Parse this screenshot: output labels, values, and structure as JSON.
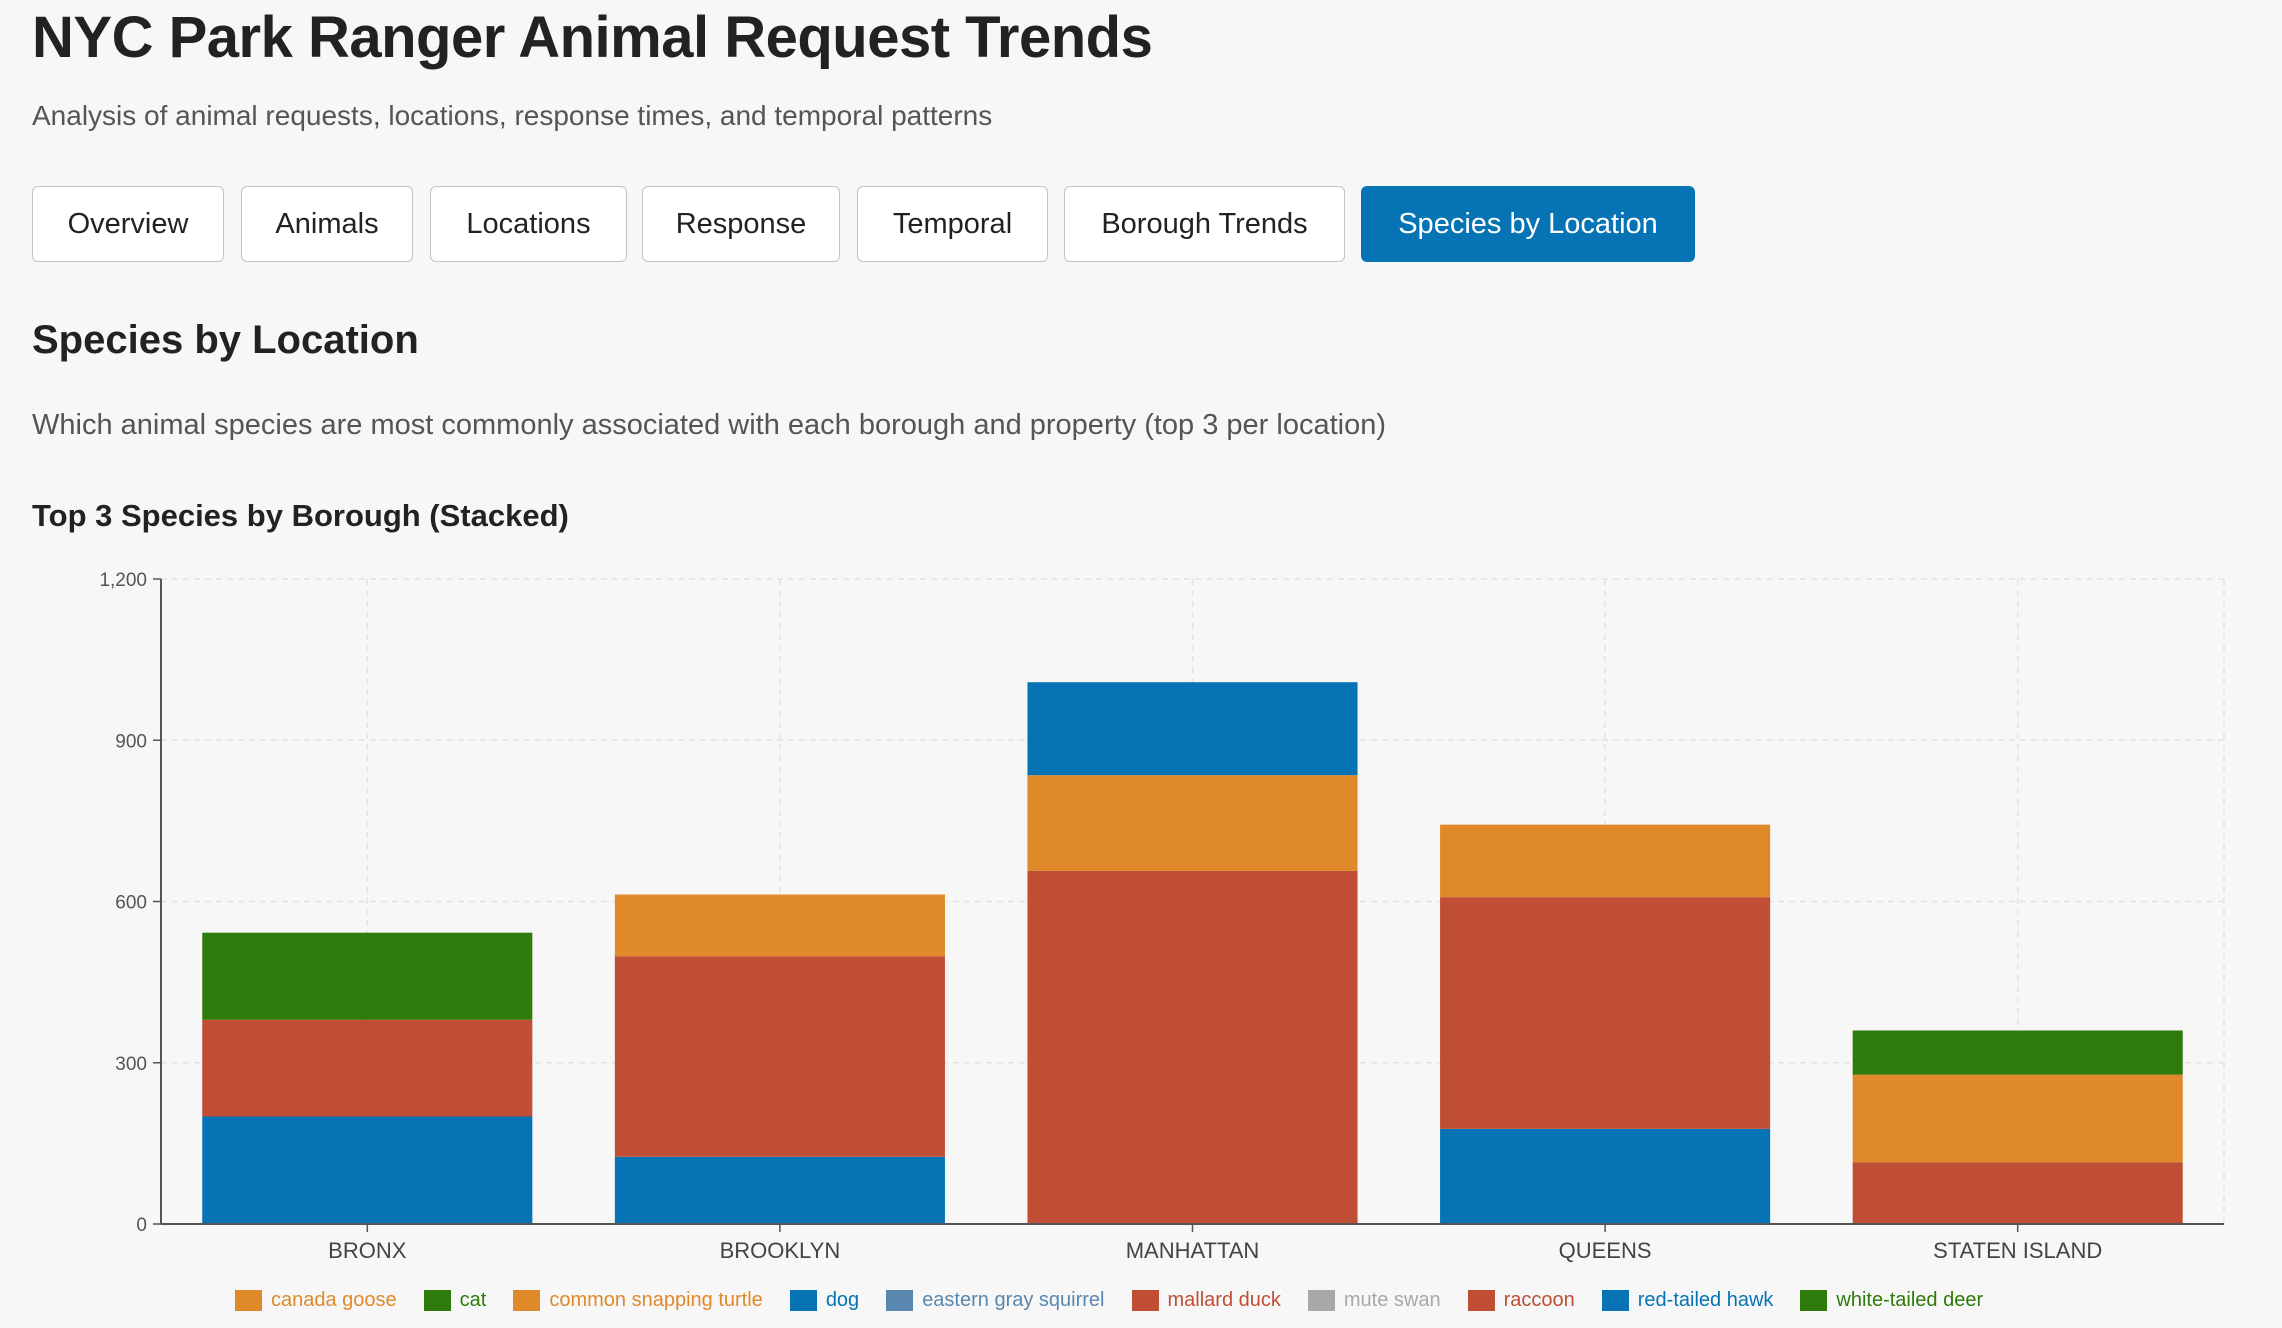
{
  "page": {
    "title": "NYC Park Ranger Animal Request Trends",
    "subtitle": "Analysis of animal requests, locations, response times, and temporal patterns"
  },
  "tabs": [
    {
      "label": "Overview",
      "active": false
    },
    {
      "label": "Animals",
      "active": false
    },
    {
      "label": "Locations",
      "active": false
    },
    {
      "label": "Response",
      "active": false
    },
    {
      "label": "Temporal",
      "active": false
    },
    {
      "label": "Borough Trends",
      "active": false
    },
    {
      "label": "Species by Location",
      "active": true
    }
  ],
  "section": {
    "title": "Species by Location",
    "description": "Which animal species are most commonly associated with each borough and property (top 3 per location)"
  },
  "colors": {
    "accent": "#0673b4",
    "canada goose": "#e0892a",
    "cat": "#2e7a0a",
    "common snapping turtle": "#e0892a",
    "dog": "#0673b4",
    "eastern gray squirrel": "#5a87b0",
    "mallard duck": "#bf4e35",
    "mute swan": "#a8a8a8",
    "raccoon": "#bf4e35",
    "red-tailed hawk": "#0673b4",
    "white-tailed deer": "#2e7a0a"
  },
  "chart_data": {
    "type": "bar",
    "stacked": true,
    "title": "Top 3 Species by Borough (Stacked)",
    "xlabel": "",
    "ylabel": "",
    "ylim": [
      0,
      1200
    ],
    "yticks": [
      0,
      300,
      600,
      900,
      1200
    ],
    "ytick_labels": [
      "0",
      "300",
      "600",
      "900",
      "1,200"
    ],
    "grid": true,
    "legend_position": "bottom",
    "categories": [
      "BRONX",
      "BROOKLYN",
      "MANHATTAN",
      "QUEENS",
      "STATEN ISLAND"
    ],
    "legend": [
      "canada goose",
      "cat",
      "common snapping turtle",
      "dog",
      "eastern gray squirrel",
      "mallard duck",
      "mute swan",
      "raccoon",
      "red-tailed hawk",
      "white-tailed deer"
    ],
    "stacks": [
      [
        {
          "species": "dog",
          "value": 200
        },
        {
          "species": "raccoon",
          "value": 180
        },
        {
          "species": "white-tailed deer",
          "value": 162
        }
      ],
      [
        {
          "species": "dog",
          "value": 125
        },
        {
          "species": "raccoon",
          "value": 373
        },
        {
          "species": "common snapping turtle",
          "value": 115
        }
      ],
      [
        {
          "species": "raccoon",
          "value": 657
        },
        {
          "species": "common snapping turtle",
          "value": 178
        },
        {
          "species": "red-tailed hawk",
          "value": 173
        }
      ],
      [
        {
          "species": "dog",
          "value": 177
        },
        {
          "species": "raccoon",
          "value": 431
        },
        {
          "species": "common snapping turtle",
          "value": 135
        }
      ],
      [
        {
          "species": "raccoon",
          "value": 115
        },
        {
          "species": "common snapping turtle",
          "value": 163
        },
        {
          "species": "white-tailed deer",
          "value": 82
        }
      ]
    ]
  }
}
